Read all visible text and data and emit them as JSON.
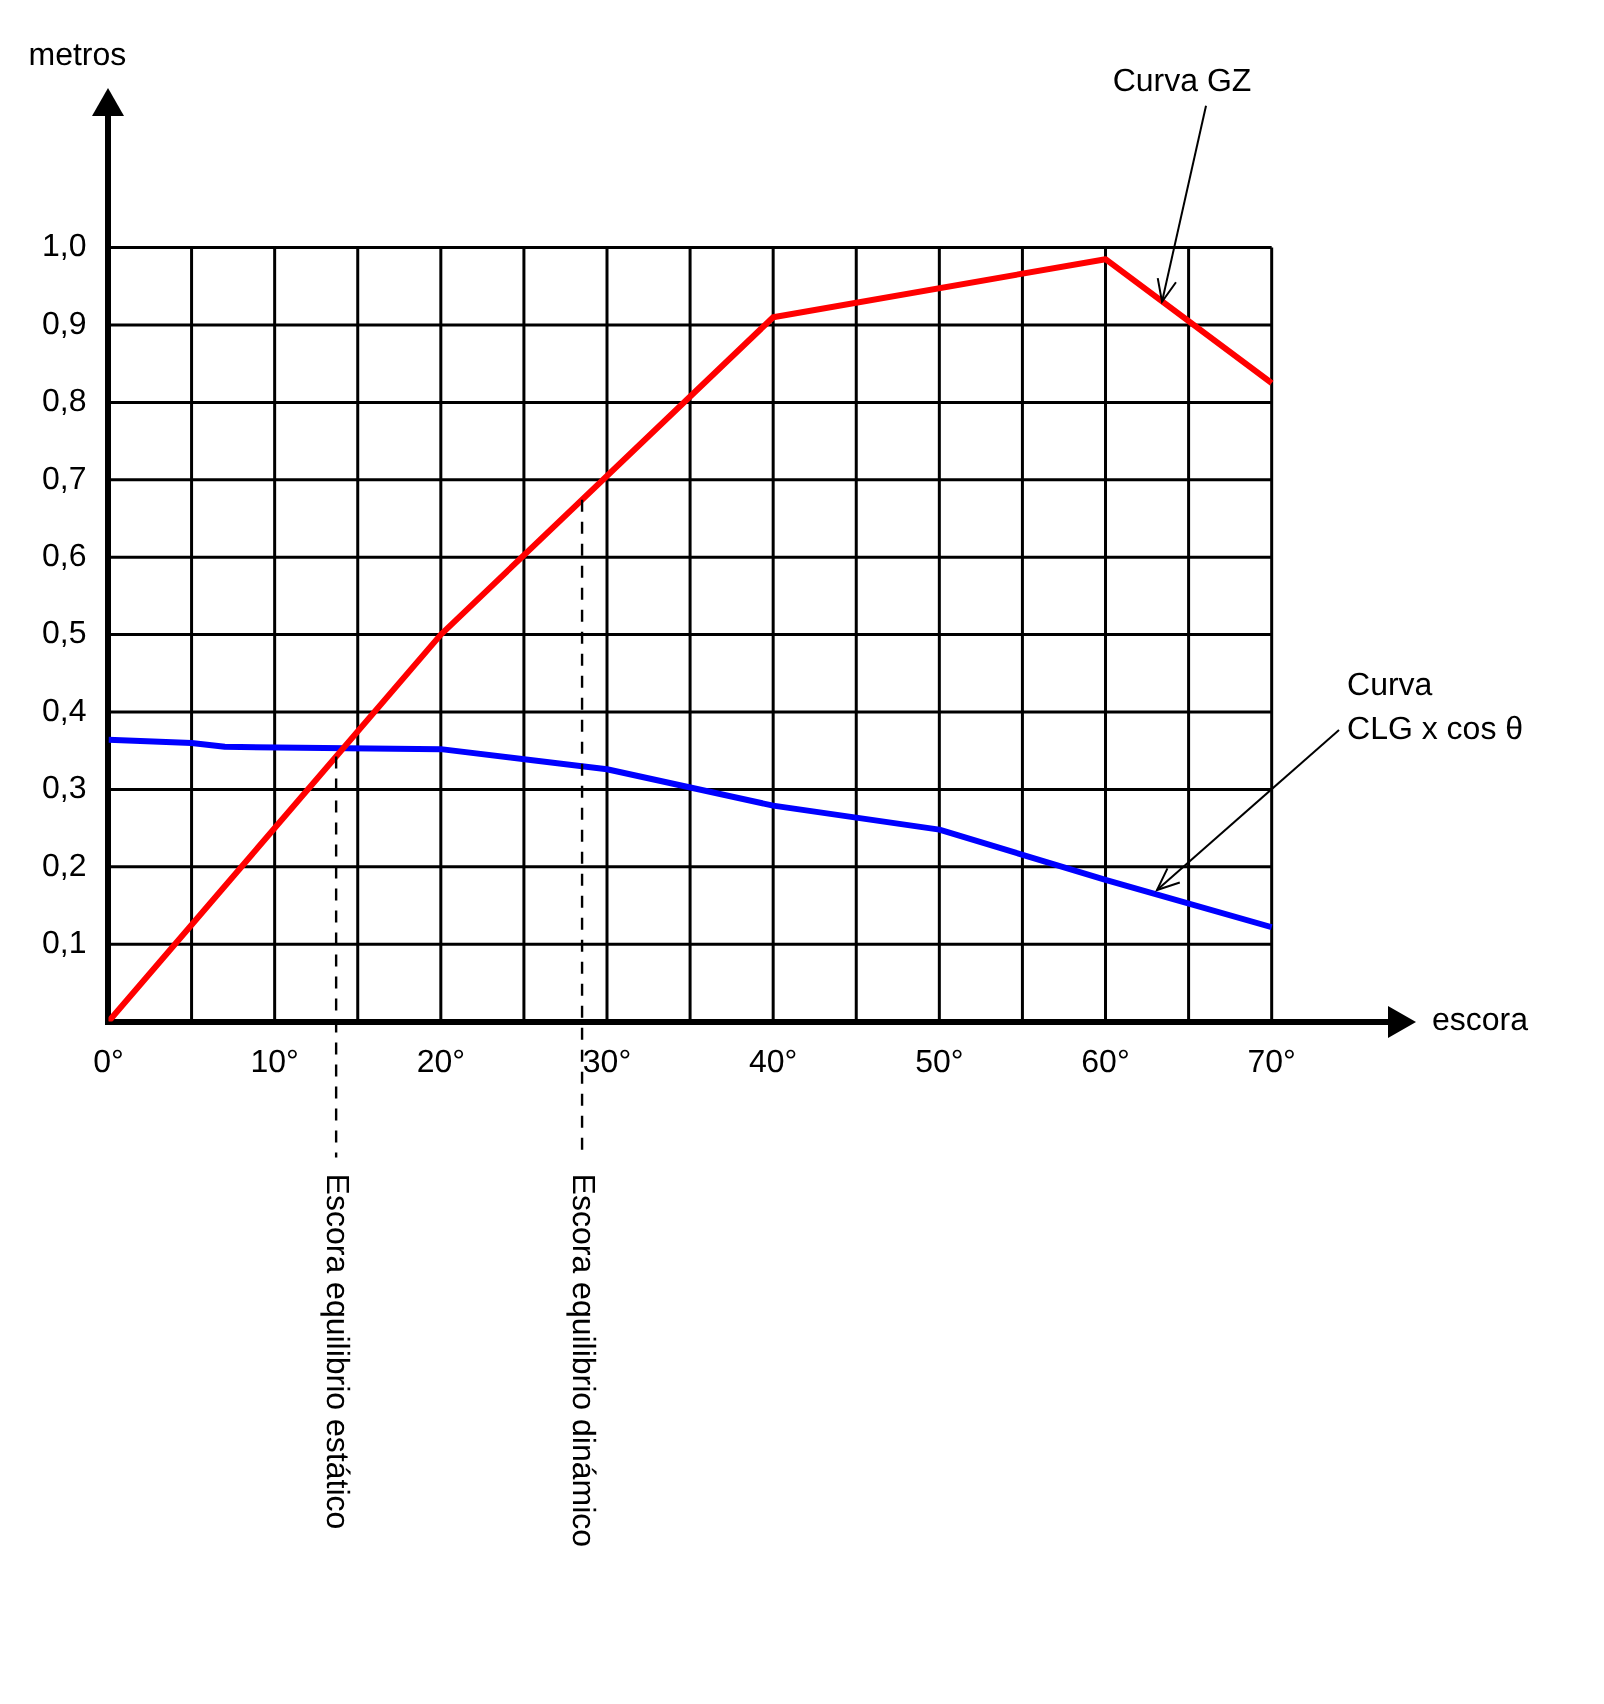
{
  "chart_data": {
    "type": "line",
    "xlabel": "escora",
    "ylabel": "metros",
    "xlim": [
      0,
      77
    ],
    "ylim": [
      0,
      1.17
    ],
    "xticks": [
      {
        "value": 0,
        "label": "0°"
      },
      {
        "value": 5,
        "label": null
      },
      {
        "value": 10,
        "label": "10°"
      },
      {
        "value": 15,
        "label": null
      },
      {
        "value": 20,
        "label": "20°"
      },
      {
        "value": 25,
        "label": null
      },
      {
        "value": 30,
        "label": "30°"
      },
      {
        "value": 35,
        "label": null
      },
      {
        "value": 40,
        "label": "40°"
      },
      {
        "value": 45,
        "label": null
      },
      {
        "value": 50,
        "label": "50°"
      },
      {
        "value": 55,
        "label": null
      },
      {
        "value": 60,
        "label": "60°"
      },
      {
        "value": 65,
        "label": null
      },
      {
        "value": 70,
        "label": "70°"
      }
    ],
    "yticks": [
      {
        "value": 0,
        "label": null
      },
      {
        "value": 0.1,
        "label": "0,1"
      },
      {
        "value": 0.2,
        "label": "0,2"
      },
      {
        "value": 0.3,
        "label": "0,3"
      },
      {
        "value": 0.4,
        "label": "0,4"
      },
      {
        "value": 0.5,
        "label": "0,5"
      },
      {
        "value": 0.6,
        "label": "0,6"
      },
      {
        "value": 0.7,
        "label": "0,7"
      },
      {
        "value": 0.8,
        "label": "0,8"
      },
      {
        "value": 0.9,
        "label": "0,9"
      },
      {
        "value": 1.0,
        "label": "1,0"
      }
    ],
    "series": [
      {
        "color": "#ff0000",
        "x": [
          0,
          20,
          40,
          60,
          70
        ],
        "values": [
          0,
          0.5,
          0.91,
          0.985,
          0.825
        ]
      },
      {
        "color": "#0000ff",
        "x": [
          0,
          5,
          7,
          20,
          30,
          40,
          50,
          60,
          70
        ],
        "values": [
          0.364,
          0.36,
          0.355,
          0.352,
          0.326,
          0.279,
          0.248,
          0.183,
          0.122
        ]
      }
    ],
    "annotations": [
      {
        "text": "Curva GZ",
        "x": 63.4,
        "y": 0.93
      },
      {
        "text": "Curva\nCLG x cos θ",
        "x": 63.1,
        "y": 0.17
      }
    ],
    "ref_lines": [
      {
        "axis": "x",
        "value": 13.7,
        "label": "Escora equilibrio estático",
        "line_style": "dashed"
      },
      {
        "axis": "x",
        "value": 28.5,
        "label": "Escora equilibrio dinámico",
        "line_style": "dashed"
      }
    ],
    "grid": true,
    "legend": false,
    "marker": "none",
    "line_style": "solid"
  }
}
